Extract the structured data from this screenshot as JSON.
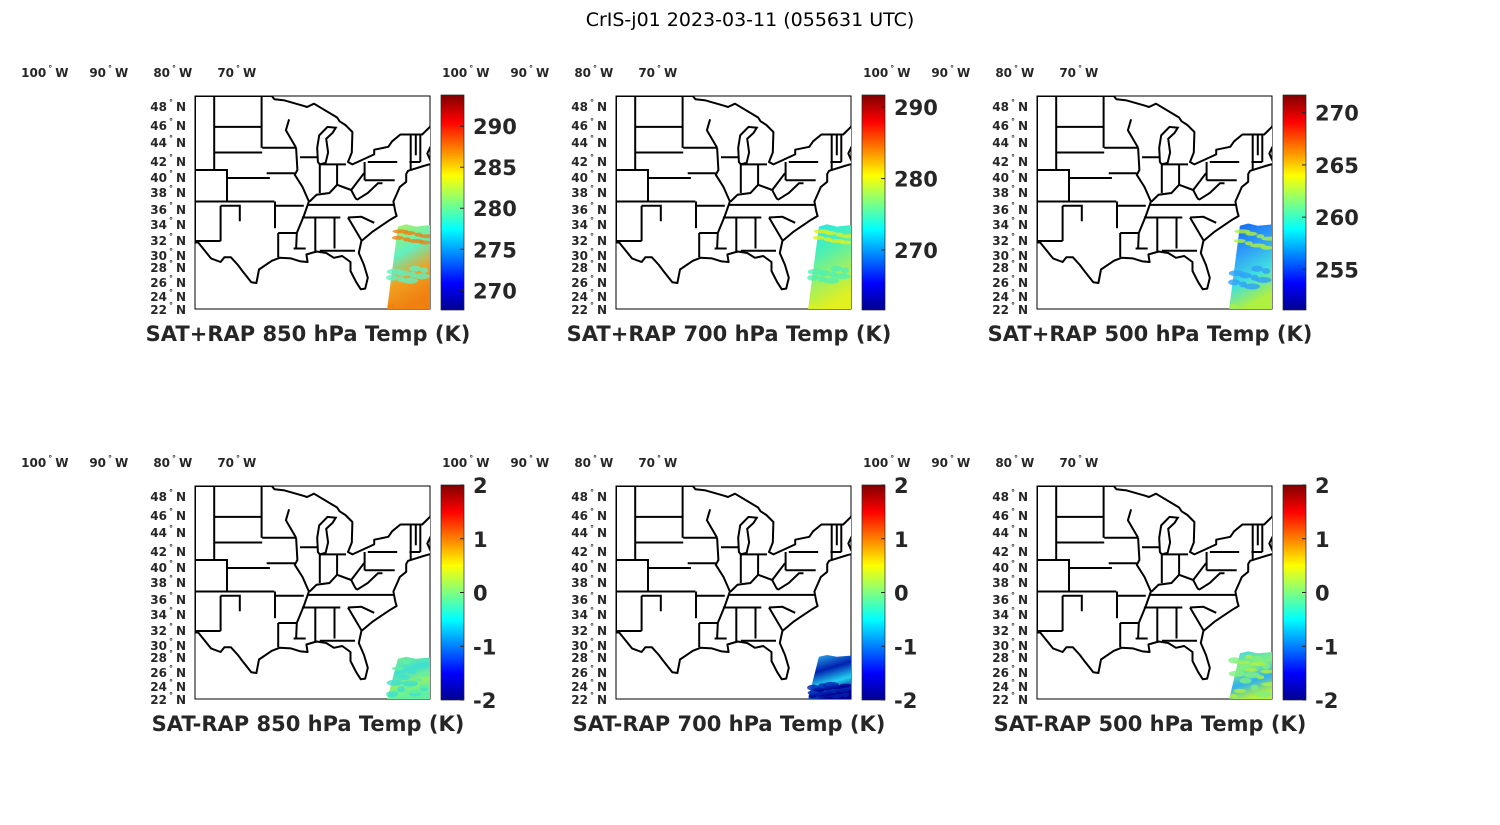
{
  "figure_title": "CrIS-j01 2023-03-11 (055631 UTC)",
  "lon_labels": [
    "100",
    "90",
    "80",
    "70"
  ],
  "lon_suffix": "W",
  "lat_labels": [
    "48",
    "46",
    "44",
    "42",
    "40",
    "38",
    "36",
    "34",
    "32",
    "30",
    "28",
    "26",
    "24",
    "22"
  ],
  "lat_suffix": "N",
  "degree_symbol": "°",
  "colormap": "jet",
  "panels": [
    {
      "title": "SAT+RAP 850 hPa Temp (K)",
      "colorbar": {
        "min": 267.6,
        "max": 293.8,
        "ticks": [
          "270",
          "275",
          "280",
          "285",
          "290"
        ]
      },
      "swath_colors": [
        "#b8f050",
        "#60f0c0",
        "#f0a020",
        "#f08010"
      ]
    },
    {
      "title": "SAT+RAP 700 hPa Temp (K)",
      "colorbar": {
        "min": 261.6,
        "max": 291.7,
        "ticks": [
          "270",
          "280",
          "290"
        ]
      },
      "swath_colors": [
        "#20e8f0",
        "#50f0b0",
        "#a0f060",
        "#e0f020"
      ]
    },
    {
      "title": "SAT+RAP 500 hPa Temp (K)",
      "colorbar": {
        "min": 251.1,
        "max": 271.7,
        "ticks": [
          "255",
          "260",
          "265",
          "270"
        ]
      },
      "swath_colors": [
        "#1060f0",
        "#30a0f8",
        "#40e0e0",
        "#b0f040"
      ]
    },
    {
      "title": "SAT-RAP 850 hPa Temp (K)",
      "colorbar": {
        "min": -2,
        "max": 2,
        "ticks": [
          "-2",
          "-1",
          "0",
          "1",
          "2"
        ]
      },
      "swath_colors": [
        "#80f080",
        "#40e0d0",
        "#90f070",
        "#60f0a0"
      ]
    },
    {
      "title": "SAT-RAP 700 hPa Temp (K)",
      "colorbar": {
        "min": -2,
        "max": 2,
        "ticks": [
          "-2",
          "-1",
          "0",
          "1",
          "2"
        ]
      },
      "swath_colors": [
        "#30c0f0",
        "#0020b0",
        "#20d0f0",
        "#000090"
      ]
    },
    {
      "title": "SAT-RAP 500 hPa Temp (K)",
      "colorbar": {
        "min": -2,
        "max": 2,
        "ticks": [
          "-2",
          "-1",
          "0",
          "1",
          "2"
        ]
      },
      "swath_colors": [
        "#40d0f0",
        "#80f080",
        "#30b0f0",
        "#b0f040"
      ]
    }
  ]
}
